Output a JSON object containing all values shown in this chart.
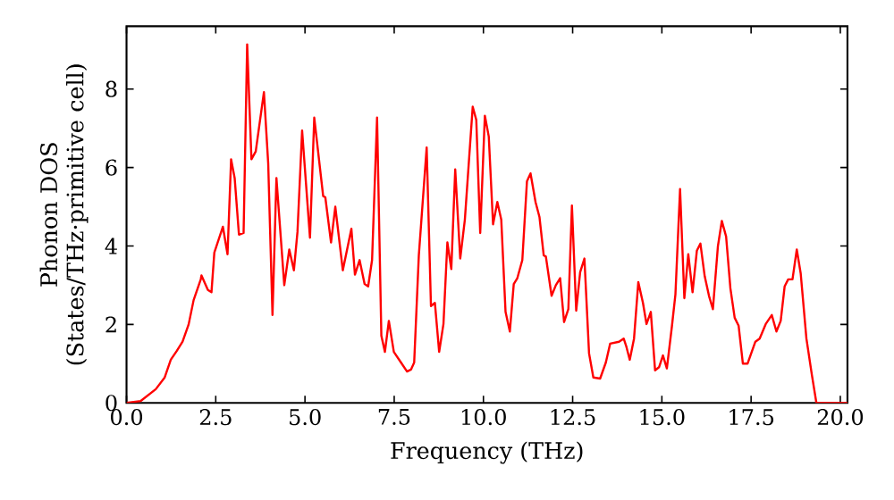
{
  "chart_data": {
    "type": "line",
    "xlabel": "Frequency (THz)",
    "ylabel": "Phonon DOS (States/THz·primitive cell)",
    "xlim": [
      0,
      20.2
    ],
    "ylim": [
      0,
      9.6
    ],
    "xticks": [
      {
        "value": 0,
        "label": "0.0"
      },
      {
        "value": 2.5,
        "label": "2.5"
      },
      {
        "value": 5,
        "label": "5.0"
      },
      {
        "value": 7.5,
        "label": "7.5"
      },
      {
        "value": 10,
        "label": "10.0"
      },
      {
        "value": 12.5,
        "label": "12.5"
      },
      {
        "value": 15,
        "label": "15.0"
      },
      {
        "value": 17.5,
        "label": "17.5"
      },
      {
        "value": 20,
        "label": "20.0"
      }
    ],
    "yticks": [
      0,
      2,
      4,
      6,
      8
    ],
    "marker": "none",
    "line_style": "solid",
    "series": [
      {
        "color": "#ff0000",
        "x": [
          0,
          0.4,
          0.82,
          1.07,
          1.24,
          1.41,
          1.57,
          1.74,
          1.88,
          2.08,
          2.1,
          2.28,
          2.38,
          2.46,
          2.7,
          2.83,
          2.93,
          3.03,
          3.15,
          3.28,
          3.38,
          3.5,
          3.62,
          3.85,
          3.97,
          4.09,
          4.2,
          4.42,
          4.56,
          4.69,
          4.79,
          4.92,
          5.14,
          5.26,
          5.51,
          5.57,
          5.73,
          5.85,
          6.06,
          6.3,
          6.4,
          6.53,
          6.67,
          6.77,
          6.88,
          7.02,
          7.14,
          7.24,
          7.35,
          7.49,
          7.69,
          7.86,
          7.97,
          8.06,
          8.19,
          8.41,
          8.53,
          8.64,
          8.76,
          8.88,
          8.99,
          9.1,
          9.21,
          9.35,
          9.48,
          9.7,
          9.8,
          9.91,
          10.04,
          10.15,
          10.27,
          10.39,
          10.5,
          10.62,
          10.74,
          10.85,
          10.95,
          11.09,
          11.22,
          11.32,
          11.46,
          11.57,
          11.69,
          11.75,
          11.91,
          12.03,
          12.15,
          12.26,
          12.38,
          12.48,
          12.6,
          12.71,
          12.83,
          12.96,
          13.08,
          13.27,
          13.43,
          13.55,
          13.8,
          13.93,
          14.0,
          14.1,
          14.22,
          14.34,
          14.47,
          14.57,
          14.69,
          14.81,
          14.92,
          15.03,
          15.14,
          15.28,
          15.38,
          15.51,
          15.63,
          15.74,
          15.86,
          15.98,
          16.08,
          16.2,
          16.32,
          16.43,
          16.57,
          16.68,
          16.8,
          16.92,
          17.04,
          17.15,
          17.27,
          17.4,
          17.62,
          17.74,
          17.91,
          18.08,
          18.21,
          18.33,
          18.44,
          18.54,
          18.66,
          18.78,
          18.89,
          19.05,
          19.2,
          19.33,
          20.2
        ],
        "values": [
          0,
          0.05,
          0.35,
          0.65,
          1.1,
          1.33,
          1.56,
          2.0,
          2.62,
          3.15,
          3.25,
          2.88,
          2.82,
          3.83,
          4.49,
          3.79,
          6.21,
          5.73,
          4.29,
          4.33,
          9.14,
          6.21,
          6.41,
          7.92,
          6.1,
          2.24,
          5.73,
          3.0,
          3.91,
          3.38,
          4.36,
          6.94,
          4.21,
          7.27,
          5.27,
          5.24,
          4.09,
          5.0,
          3.38,
          4.44,
          3.27,
          3.64,
          3.03,
          2.97,
          3.64,
          7.27,
          1.71,
          1.3,
          2.09,
          1.3,
          1.03,
          0.8,
          0.85,
          1.03,
          3.76,
          6.51,
          2.47,
          2.55,
          1.3,
          2.01,
          4.09,
          3.41,
          5.95,
          3.68,
          4.67,
          7.55,
          7.21,
          4.33,
          7.32,
          6.79,
          4.55,
          5.12,
          4.67,
          2.32,
          1.82,
          3.03,
          3.18,
          3.64,
          5.65,
          5.85,
          5.12,
          4.74,
          3.76,
          3.73,
          2.73,
          3.0,
          3.18,
          2.06,
          2.39,
          5.03,
          2.35,
          3.33,
          3.68,
          1.26,
          0.65,
          0.62,
          1.03,
          1.51,
          1.56,
          1.64,
          1.45,
          1.1,
          1.64,
          3.08,
          2.55,
          2.01,
          2.32,
          0.83,
          0.91,
          1.21,
          0.88,
          1.94,
          2.77,
          5.45,
          2.67,
          3.79,
          2.82,
          3.88,
          4.06,
          3.23,
          2.73,
          2.39,
          3.99,
          4.64,
          4.24,
          2.92,
          2.17,
          1.97,
          1.0,
          1.0,
          1.56,
          1.64,
          2.01,
          2.24,
          1.82,
          2.09,
          2.97,
          3.15,
          3.15,
          3.91,
          3.3,
          1.64,
          0.73,
          0,
          0
        ]
      }
    ]
  }
}
